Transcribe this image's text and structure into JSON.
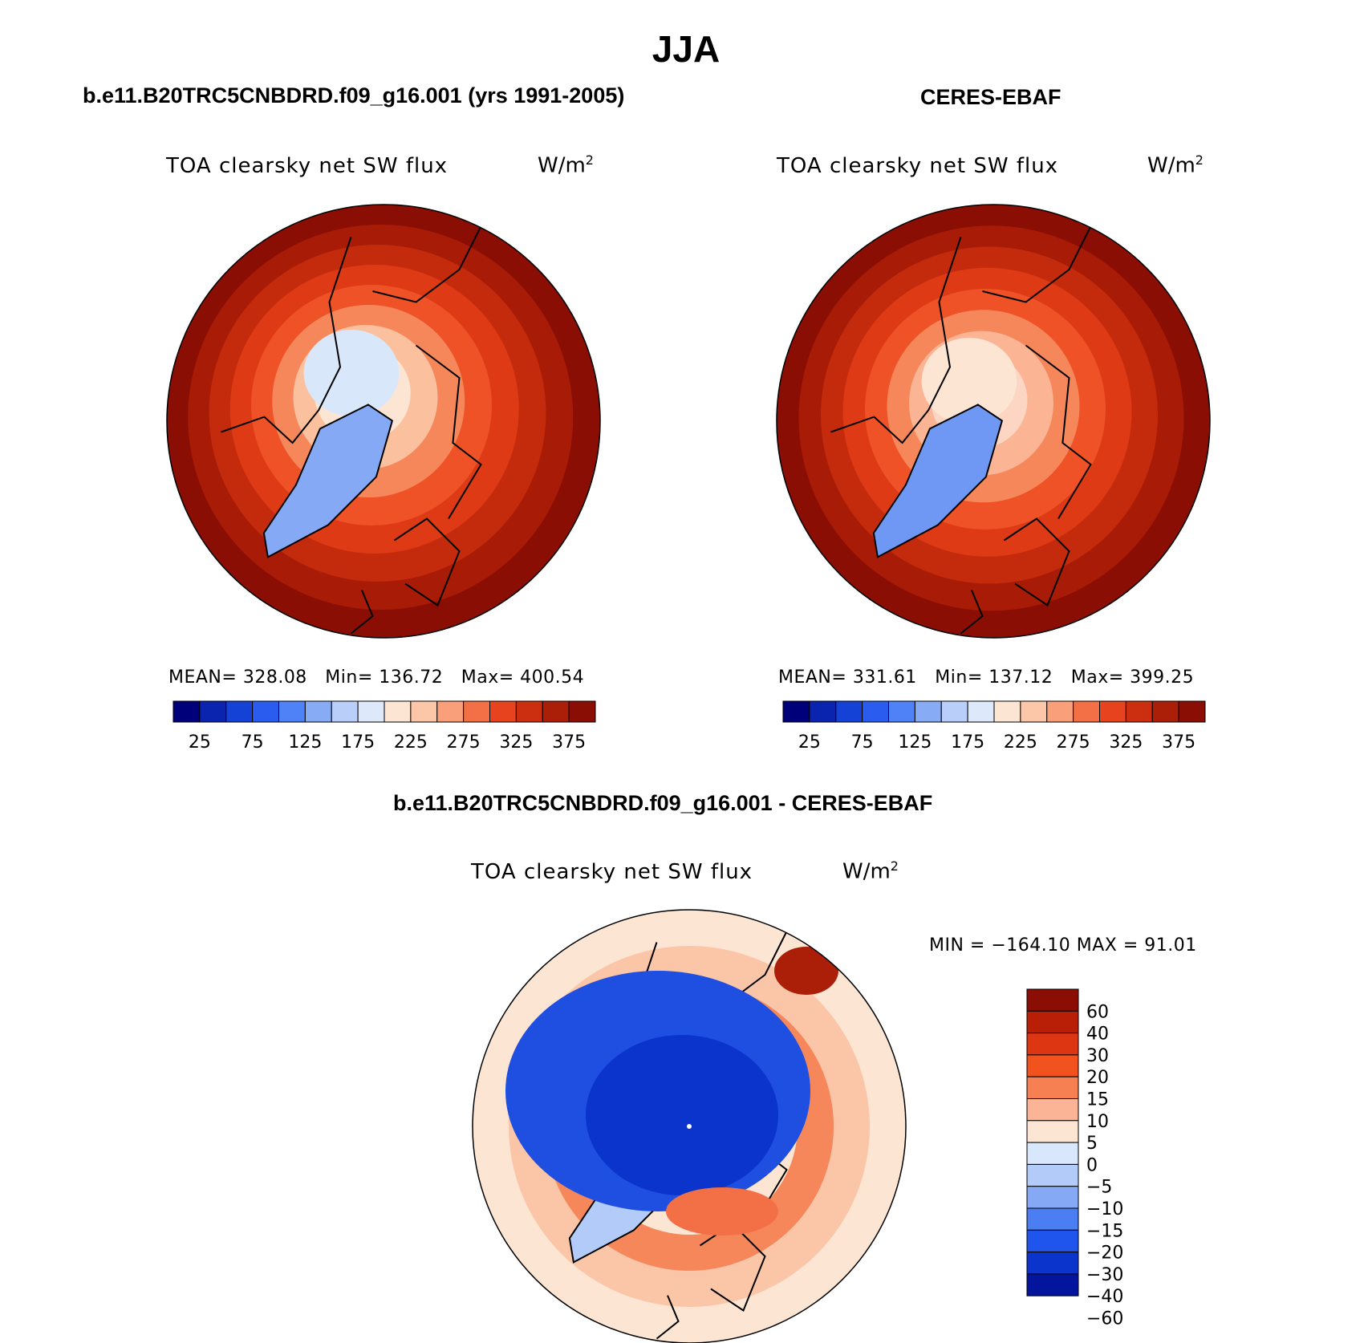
{
  "title": "JJA",
  "panels": [
    {
      "id": "model",
      "title": "b.e11.B20TRC5CNBDRD.f09_g16.001 (yrs 1991-2005)",
      "variable": "TOA clearsky net SW flux",
      "units_base": "W/m",
      "units_exp": "2",
      "stats": {
        "mean_label": "MEAN=",
        "mean": "328.08",
        "min_label": "Min=",
        "min": "136.72",
        "max_label": "Max=",
        "max": "400.54"
      }
    },
    {
      "id": "obs",
      "title": "CERES-EBAF",
      "variable": "TOA clearsky net SW flux",
      "units_base": "W/m",
      "units_exp": "2",
      "stats": {
        "mean_label": "MEAN=",
        "mean": "331.61",
        "min_label": "Min=",
        "min": "137.12",
        "max_label": "Max=",
        "max": "399.25"
      }
    },
    {
      "id": "diff",
      "title": "b.e11.B20TRC5CNBDRD.f09_g16.001 - CERES-EBAF",
      "variable": "TOA clearsky net SW flux",
      "units_base": "W/m",
      "units_exp": "2",
      "stats": {
        "text": "MIN = −164.10 MAX =   91.01"
      }
    }
  ],
  "colorbars": {
    "absolute": {
      "colors": [
        "#00007a",
        "#0a24b0",
        "#1441d6",
        "#2a5cf0",
        "#4f82f7",
        "#87abf5",
        "#b9cef9",
        "#dde9fb",
        "#fde5d4",
        "#fcc6a8",
        "#f9a07a",
        "#f36f45",
        "#e8431f",
        "#cc2f0f",
        "#ab1e07",
        "#8a0e03"
      ],
      "tick_labels": [
        "25",
        "75",
        "125",
        "175",
        "225",
        "275",
        "325",
        "375"
      ]
    },
    "difference": {
      "colors": [
        "#8a0e03",
        "#b81f06",
        "#dd3612",
        "#f2521e",
        "#f78052",
        "#fbb495",
        "#fde5d4",
        "#d8e7fb",
        "#b2cbf9",
        "#86a9f5",
        "#4c7ef3",
        "#1f55ec",
        "#0a34cc",
        "#03149d"
      ],
      "tick_labels": [
        "60",
        "40",
        "30",
        "20",
        "15",
        "10",
        "5",
        "0",
        "−5",
        "−10",
        "−15",
        "−20",
        "−30",
        "−40",
        "−60"
      ]
    }
  },
  "maps": [
    {
      "id": "model-map",
      "rings": [
        "#8a0e03",
        "#a81b06",
        "#c42b0c",
        "#dd3a15",
        "#ee5226",
        "#f6875a",
        "#fbc09e",
        "#fde5d4"
      ],
      "pole_field": "#d9e7fb",
      "greenland": "#85a9f5"
    },
    {
      "id": "obs-map",
      "rings": [
        "#8a0e03",
        "#a81b06",
        "#c42b0c",
        "#dd3a15",
        "#ee5226",
        "#f6875a",
        "#fbb494",
        "#fcd6c2"
      ],
      "pole_field": "#fde5d4",
      "greenland": "#6f97f4"
    },
    {
      "id": "diff-map",
      "rings": [
        "#fde5d4",
        "#fbc5a8",
        "#f6875a",
        "#fde5d4",
        "#d8e7fb"
      ],
      "pole_field": "#1f4fe0",
      "greenland": "#b2cbf9"
    }
  ]
}
